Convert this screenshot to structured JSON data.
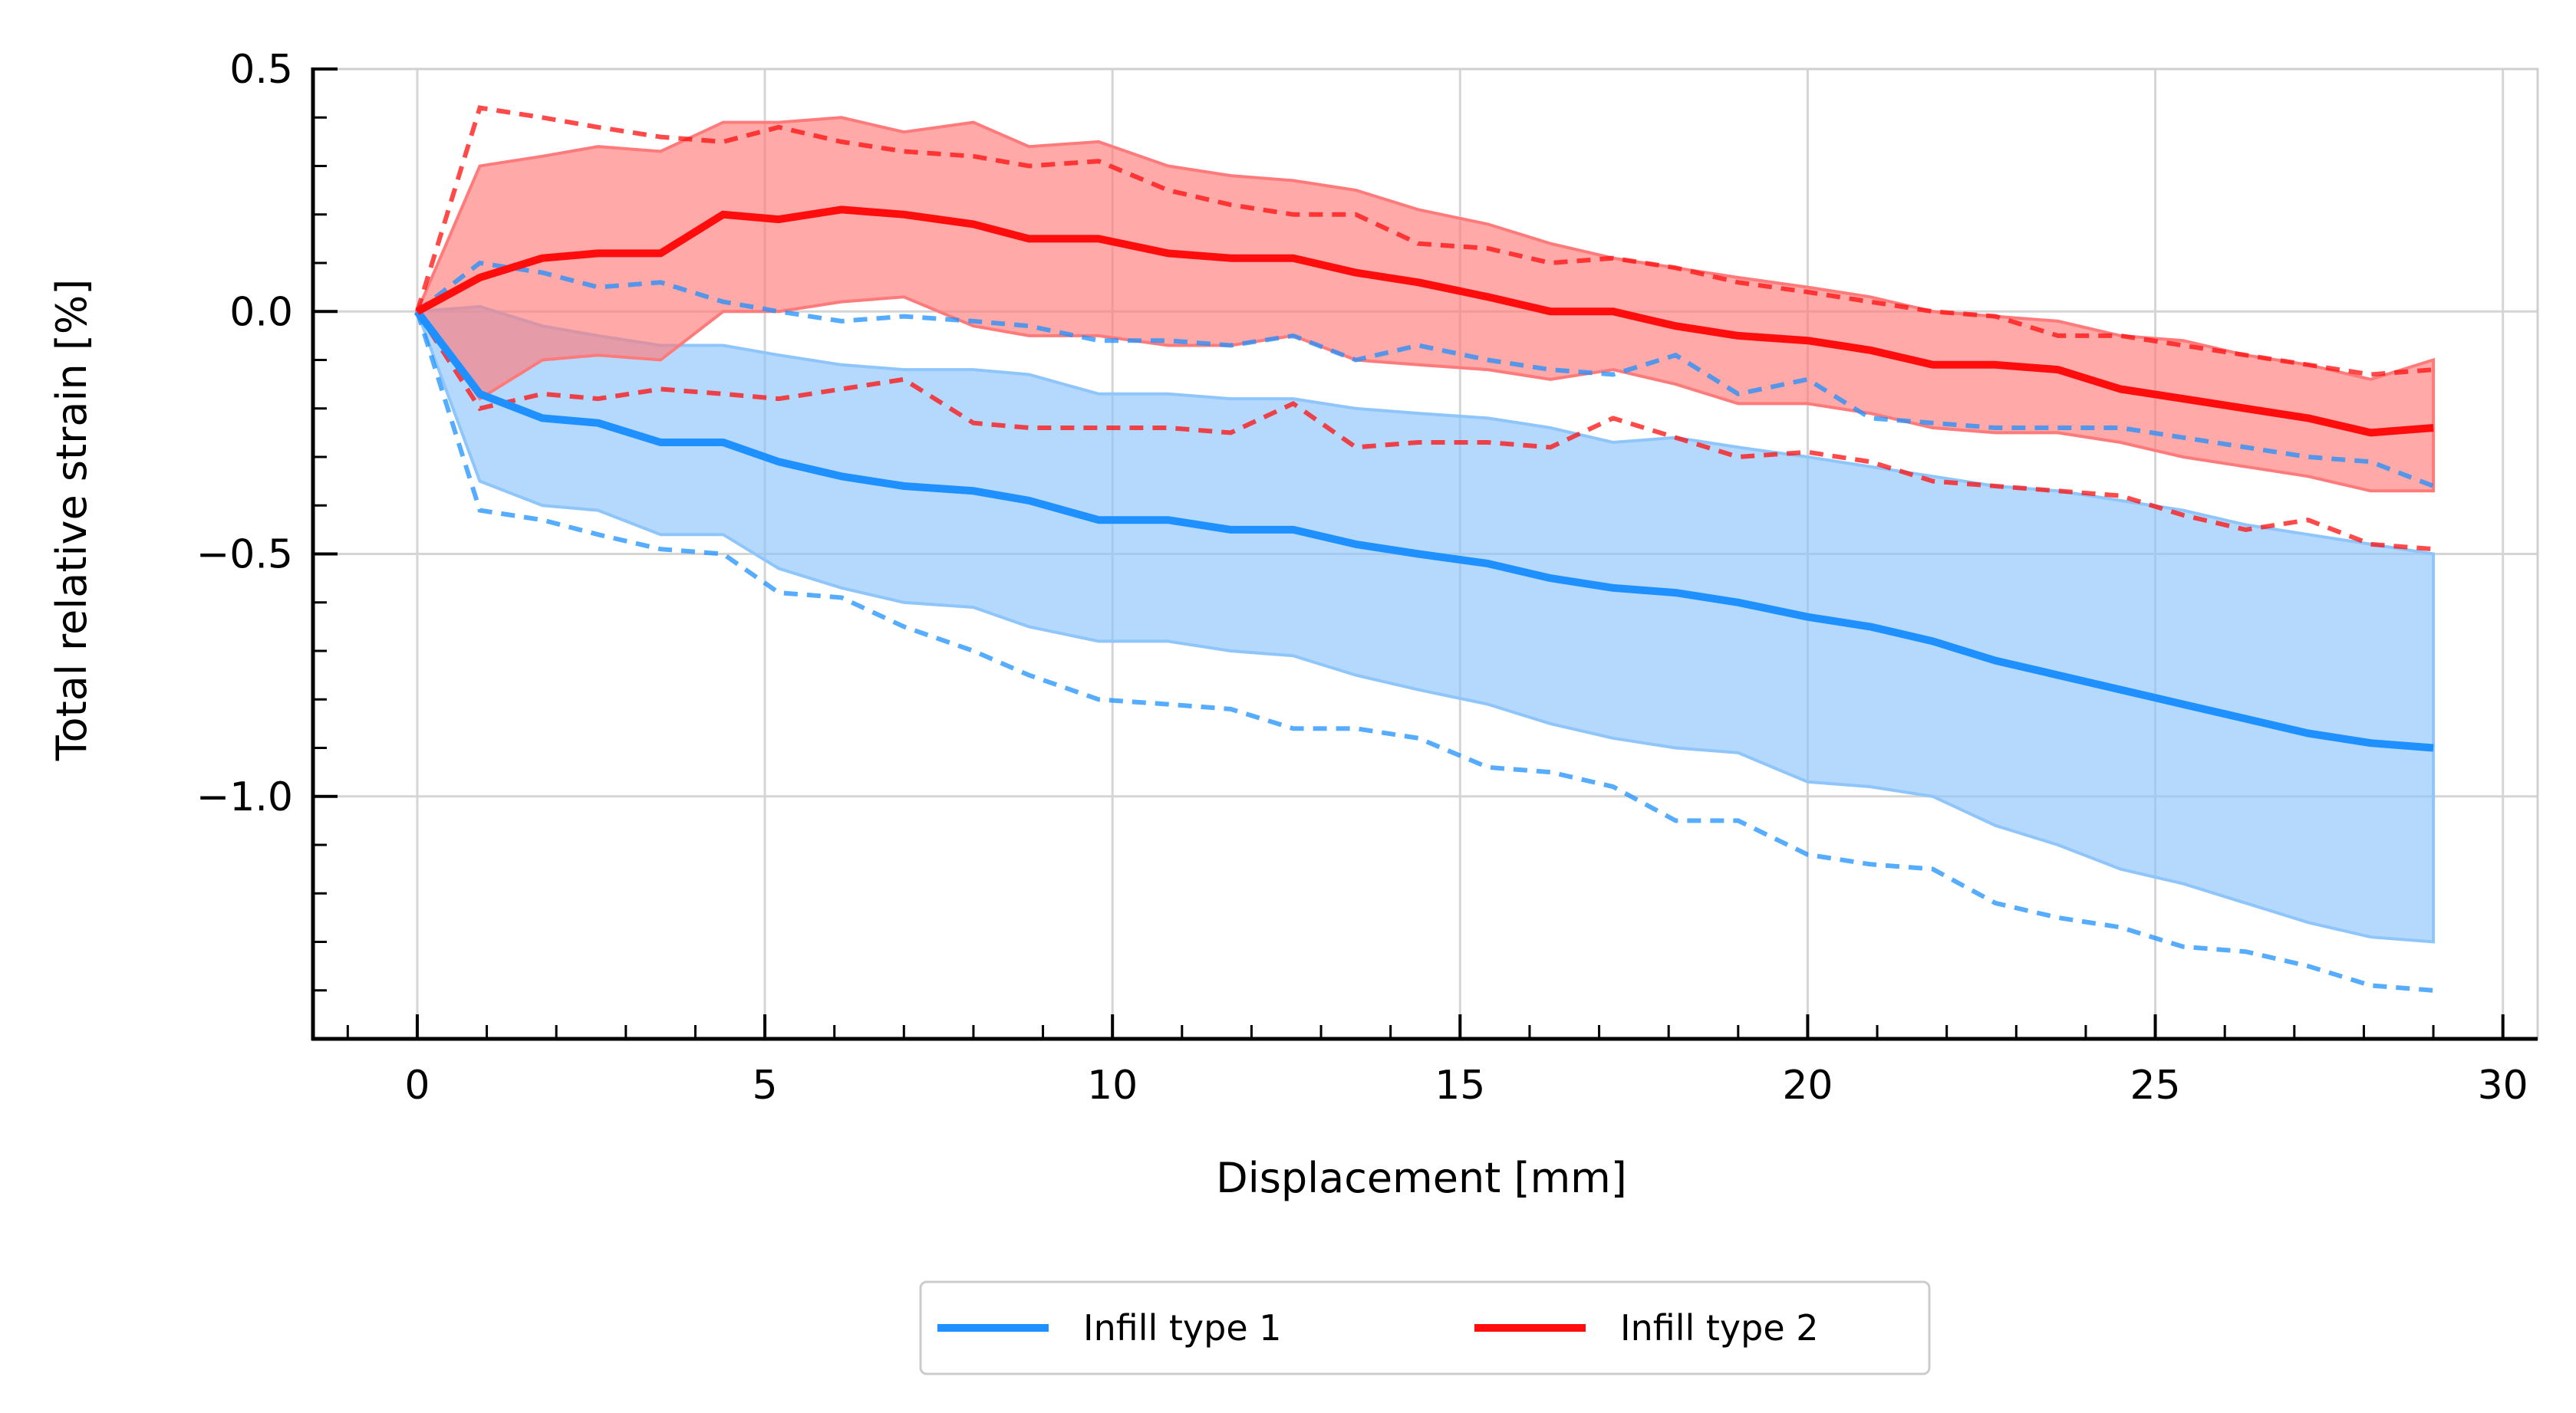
{
  "chart_data": {
    "type": "line",
    "title": "",
    "xlabel": "Displacement [mm]",
    "ylabel": "Total relative strain [%]",
    "xlim": [
      -1.5,
      30.5
    ],
    "ylim": [
      -1.5,
      0.5
    ],
    "xticks": [
      {
        "value": 0,
        "label": "0"
      },
      {
        "value": 5,
        "label": "5"
      },
      {
        "value": 10,
        "label": "10"
      },
      {
        "value": 15,
        "label": "15"
      },
      {
        "value": 20,
        "label": "20"
      },
      {
        "value": 25,
        "label": "25"
      },
      {
        "value": 30,
        "label": "30"
      }
    ],
    "yticks": [
      {
        "value": 0.5,
        "label": "0.5"
      },
      {
        "value": 0.0,
        "label": "0.0"
      },
      {
        "value": -0.5,
        "label": "−0.5"
      },
      {
        "value": -1.0,
        "label": "−1.0"
      }
    ],
    "grid": true,
    "legend_position": "bottom-center-outside",
    "series": [
      {
        "name": "Infill type 1",
        "color": "#1e90ff",
        "band_color": "#8ec5fb",
        "x": [
          0,
          0.9,
          1.8,
          2.6,
          3.5,
          4.4,
          5.2,
          6.1,
          7.0,
          8.0,
          8.8,
          9.8,
          10.8,
          11.7,
          12.6,
          13.5,
          14.4,
          15.4,
          16.3,
          17.2,
          18.1,
          19.0,
          20.0,
          20.9,
          21.8,
          22.7,
          23.6,
          24.5,
          25.4,
          26.3,
          27.2,
          28.1,
          29.0
        ],
        "mean": [
          0,
          -0.17,
          -0.22,
          -0.23,
          -0.27,
          -0.27,
          -0.31,
          -0.34,
          -0.36,
          -0.37,
          -0.39,
          -0.43,
          -0.43,
          -0.45,
          -0.45,
          -0.48,
          -0.5,
          -0.52,
          -0.55,
          -0.57,
          -0.58,
          -0.6,
          -0.63,
          -0.65,
          -0.68,
          -0.72,
          -0.75,
          -0.78,
          -0.81,
          -0.84,
          -0.87,
          -0.89,
          -0.9
        ],
        "band_upper": [
          0,
          0.01,
          -0.03,
          -0.05,
          -0.07,
          -0.07,
          -0.09,
          -0.11,
          -0.12,
          -0.12,
          -0.13,
          -0.17,
          -0.17,
          -0.18,
          -0.18,
          -0.2,
          -0.21,
          -0.22,
          -0.24,
          -0.27,
          -0.26,
          -0.28,
          -0.3,
          -0.32,
          -0.34,
          -0.36,
          -0.37,
          -0.39,
          -0.41,
          -0.44,
          -0.46,
          -0.48,
          -0.5
        ],
        "band_lower": [
          0,
          -0.35,
          -0.4,
          -0.41,
          -0.46,
          -0.46,
          -0.53,
          -0.57,
          -0.6,
          -0.61,
          -0.65,
          -0.68,
          -0.68,
          -0.7,
          -0.71,
          -0.75,
          -0.78,
          -0.81,
          -0.85,
          -0.88,
          -0.9,
          -0.91,
          -0.97,
          -0.98,
          -1.0,
          -1.06,
          -1.1,
          -1.15,
          -1.18,
          -1.22,
          -1.26,
          -1.29,
          -1.3
        ],
        "dashed_upper": [
          0,
          0.1,
          0.08,
          0.05,
          0.06,
          0.02,
          0.0,
          -0.02,
          -0.01,
          -0.02,
          -0.03,
          -0.06,
          -0.06,
          -0.07,
          -0.05,
          -0.1,
          -0.07,
          -0.1,
          -0.12,
          -0.13,
          -0.09,
          -0.17,
          -0.14,
          -0.22,
          -0.23,
          -0.24,
          -0.24,
          -0.24,
          -0.26,
          -0.28,
          -0.3,
          -0.31,
          -0.36
        ],
        "dashed_lower": [
          0,
          -0.41,
          -0.43,
          -0.46,
          -0.49,
          -0.5,
          -0.58,
          -0.59,
          -0.65,
          -0.7,
          -0.75,
          -0.8,
          -0.81,
          -0.82,
          -0.86,
          -0.86,
          -0.88,
          -0.94,
          -0.95,
          -0.98,
          -1.05,
          -1.05,
          -1.12,
          -1.14,
          -1.15,
          -1.22,
          -1.25,
          -1.27,
          -1.31,
          -1.32,
          -1.35,
          -1.39,
          -1.4
        ]
      },
      {
        "name": "Infill type 2",
        "color": "#ff0d0d",
        "band_color": "#ff7b7b",
        "x": [
          0,
          0.9,
          1.8,
          2.6,
          3.5,
          4.4,
          5.2,
          6.1,
          7.0,
          8.0,
          8.8,
          9.8,
          10.8,
          11.7,
          12.6,
          13.5,
          14.4,
          15.4,
          16.3,
          17.2,
          18.1,
          19.0,
          20.0,
          20.9,
          21.8,
          22.7,
          23.6,
          24.5,
          25.4,
          26.3,
          27.2,
          28.1,
          29.0
        ],
        "mean": [
          0,
          0.07,
          0.11,
          0.12,
          0.12,
          0.2,
          0.19,
          0.21,
          0.2,
          0.18,
          0.15,
          0.15,
          0.12,
          0.11,
          0.11,
          0.08,
          0.06,
          0.03,
          0.0,
          0.0,
          -0.03,
          -0.05,
          -0.06,
          -0.08,
          -0.11,
          -0.11,
          -0.12,
          -0.16,
          -0.18,
          -0.2,
          -0.22,
          -0.25,
          -0.24
        ],
        "band_upper": [
          0,
          0.3,
          0.32,
          0.34,
          0.33,
          0.39,
          0.39,
          0.4,
          0.37,
          0.39,
          0.34,
          0.35,
          0.3,
          0.28,
          0.27,
          0.25,
          0.21,
          0.18,
          0.14,
          0.11,
          0.09,
          0.07,
          0.05,
          0.03,
          0.0,
          -0.01,
          -0.02,
          -0.05,
          -0.06,
          -0.09,
          -0.11,
          -0.14,
          -0.1
        ],
        "band_lower": [
          0,
          -0.18,
          -0.1,
          -0.09,
          -0.1,
          0.0,
          0.0,
          0.02,
          0.03,
          -0.03,
          -0.05,
          -0.05,
          -0.07,
          -0.07,
          -0.05,
          -0.1,
          -0.11,
          -0.12,
          -0.14,
          -0.12,
          -0.15,
          -0.19,
          -0.19,
          -0.21,
          -0.24,
          -0.25,
          -0.25,
          -0.27,
          -0.3,
          -0.32,
          -0.34,
          -0.37,
          -0.37
        ],
        "dashed_upper": [
          0,
          0.42,
          0.4,
          0.38,
          0.36,
          0.35,
          0.38,
          0.35,
          0.33,
          0.32,
          0.3,
          0.31,
          0.25,
          0.22,
          0.2,
          0.2,
          0.14,
          0.13,
          0.1,
          0.11,
          0.09,
          0.06,
          0.04,
          0.02,
          0.0,
          -0.01,
          -0.05,
          -0.05,
          -0.07,
          -0.09,
          -0.11,
          -0.13,
          -0.12
        ],
        "dashed_lower": [
          0,
          -0.2,
          -0.17,
          -0.18,
          -0.16,
          -0.17,
          -0.18,
          -0.16,
          -0.14,
          -0.23,
          -0.24,
          -0.24,
          -0.24,
          -0.25,
          -0.19,
          -0.28,
          -0.27,
          -0.27,
          -0.28,
          -0.22,
          -0.26,
          -0.3,
          -0.29,
          -0.31,
          -0.35,
          -0.36,
          -0.37,
          -0.38,
          -0.42,
          -0.45,
          -0.43,
          -0.48,
          -0.49
        ]
      }
    ]
  }
}
